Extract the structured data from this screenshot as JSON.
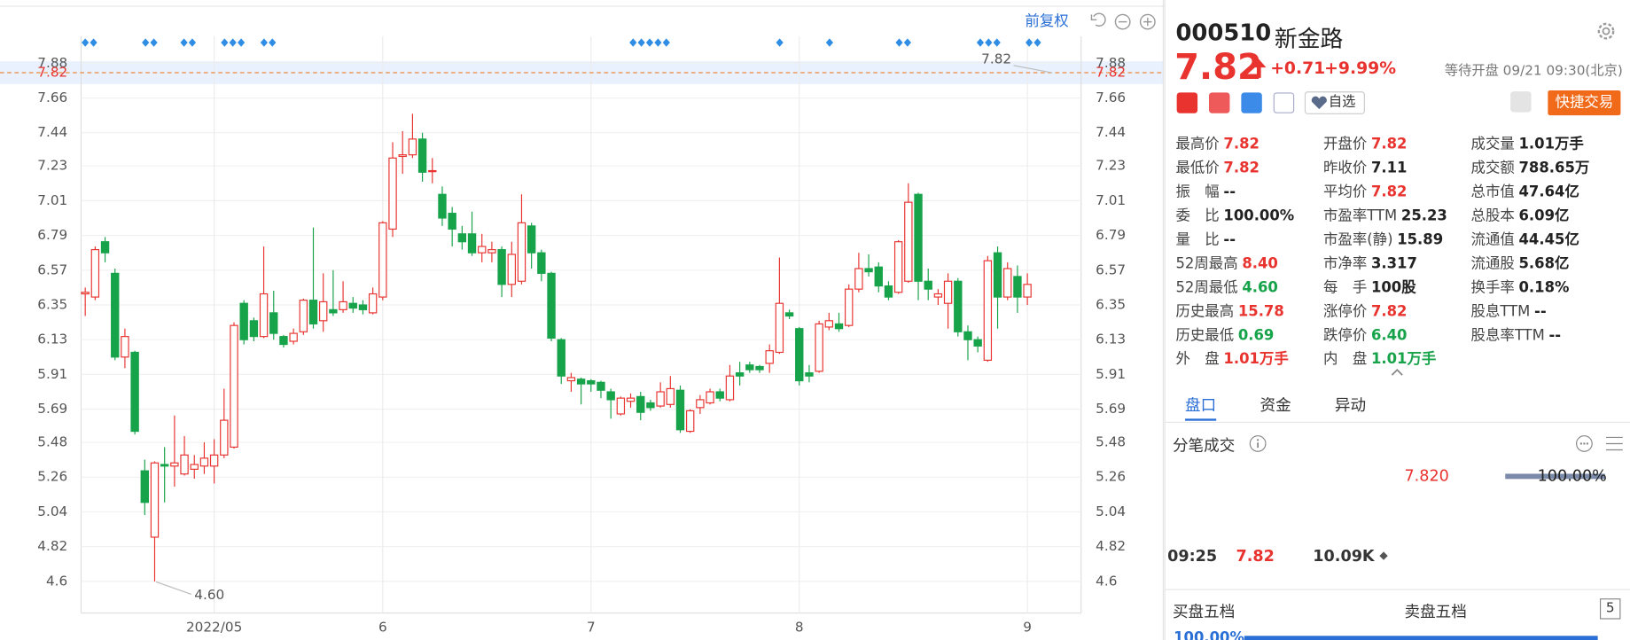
{
  "chart_data": {
    "type": "candlestick",
    "categories": [
      null,
      null,
      null,
      null,
      null,
      null,
      null,
      null,
      null,
      null,
      null,
      null,
      null,
      "2022/05",
      null,
      null,
      null,
      null,
      null,
      null,
      null,
      null,
      null,
      null,
      null,
      null,
      null,
      null,
      null,
      null,
      "6",
      null,
      null,
      null,
      null,
      null,
      null,
      null,
      null,
      null,
      null,
      null,
      null,
      null,
      null,
      null,
      null,
      null,
      null,
      null,
      null,
      "7",
      null,
      null,
      null,
      null,
      null,
      null,
      null,
      null,
      null,
      null,
      null,
      null,
      null,
      null,
      null,
      null,
      null,
      null,
      null,
      null,
      "8",
      null,
      null,
      null,
      null,
      null,
      null,
      null,
      null,
      null,
      null,
      null,
      null,
      null,
      null,
      null,
      null,
      null,
      null,
      null,
      null,
      null,
      null,
      "9"
    ],
    "open": [
      6.42,
      6.4,
      6.75,
      6.55,
      6.02,
      6.05,
      5.3,
      4.88,
      5.34,
      5.33,
      5.28,
      5.31,
      5.33,
      5.33,
      5.4,
      5.45,
      6.36,
      6.25,
      6.15,
      6.3,
      6.15,
      6.12,
      6.18,
      6.38,
      6.25,
      6.32,
      6.32,
      6.36,
      6.35,
      6.3,
      6.4,
      6.83,
      7.29,
      7.3,
      7.4,
      7.2,
      7.05,
      6.93,
      6.8,
      6.8,
      6.68,
      6.68,
      6.7,
      6.48,
      6.5,
      6.85,
      6.68,
      6.55,
      6.13,
      5.87,
      5.88,
      5.87,
      5.86,
      5.8,
      5.66,
      5.74,
      5.77,
      5.73,
      5.71,
      5.72,
      5.81,
      5.55,
      5.7,
      5.73,
      5.8,
      5.75,
      5.92,
      5.97,
      5.96,
      5.98,
      6.05,
      6.3,
      6.2,
      5.92,
      5.93,
      6.21,
      6.23,
      6.22,
      6.45,
      6.58,
      6.59,
      6.47,
      6.43,
      6.5,
      7.05,
      6.5,
      6.4,
      6.36,
      6.5,
      6.18,
      6.13,
      6.0,
      6.68,
      6.4,
      6.53,
      6.4
    ],
    "high": [
      6.46,
      6.72,
      6.78,
      6.58,
      6.2,
      6.06,
      5.37,
      5.36,
      5.45,
      5.65,
      5.52,
      5.4,
      5.48,
      5.5,
      5.82,
      6.24,
      6.38,
      6.27,
      6.72,
      6.44,
      6.16,
      6.2,
      6.39,
      6.84,
      6.55,
      6.57,
      6.5,
      6.4,
      6.38,
      6.46,
      6.88,
      7.38,
      7.45,
      7.56,
      7.44,
      7.28,
      7.1,
      6.97,
      6.85,
      6.94,
      6.8,
      6.75,
      6.72,
      6.75,
      7.05,
      6.87,
      6.7,
      6.56,
      6.14,
      5.92,
      5.89,
      5.88,
      5.87,
      5.82,
      5.77,
      5.79,
      5.8,
      5.75,
      5.86,
      5.9,
      5.84,
      5.69,
      5.78,
      5.82,
      5.82,
      5.97,
      5.99,
      5.99,
      5.97,
      6.1,
      6.65,
      6.32,
      6.21,
      5.97,
      6.25,
      6.3,
      6.3,
      6.48,
      6.68,
      6.67,
      6.62,
      6.5,
      6.76,
      7.12,
      7.06,
      6.58,
      6.45,
      6.55,
      6.52,
      6.22,
      6.15,
      6.66,
      6.72,
      6.62,
      6.6,
      6.55
    ],
    "low": [
      6.28,
      6.38,
      6.62,
      6.0,
      5.95,
      5.53,
      5.02,
      4.6,
      5.1,
      5.2,
      5.27,
      5.25,
      5.28,
      5.22,
      5.38,
      5.44,
      6.1,
      6.12,
      6.14,
      6.13,
      6.08,
      6.1,
      6.16,
      6.2,
      6.18,
      6.28,
      6.3,
      6.3,
      6.29,
      6.29,
      6.38,
      6.78,
      7.18,
      7.28,
      7.13,
      7.12,
      6.85,
      6.72,
      6.7,
      6.66,
      6.62,
      6.62,
      6.4,
      6.4,
      6.48,
      6.58,
      6.5,
      6.12,
      5.85,
      5.8,
      5.72,
      5.8,
      5.76,
      5.63,
      5.65,
      5.7,
      5.62,
      5.68,
      5.7,
      5.7,
      5.54,
      5.54,
      5.66,
      5.72,
      5.74,
      5.74,
      5.84,
      5.92,
      5.92,
      5.92,
      6.04,
      6.26,
      5.84,
      5.86,
      5.92,
      6.19,
      6.18,
      6.21,
      6.43,
      6.53,
      6.43,
      6.38,
      6.42,
      6.49,
      6.38,
      6.38,
      6.35,
      6.2,
      6.15,
      6.0,
      6.05,
      5.99,
      6.2,
      6.38,
      6.3,
      6.35
    ],
    "close": [
      6.43,
      6.7,
      6.68,
      6.02,
      6.15,
      5.55,
      5.1,
      5.35,
      5.33,
      5.35,
      5.4,
      5.34,
      5.38,
      5.4,
      5.62,
      6.22,
      6.13,
      6.15,
      6.42,
      6.17,
      6.1,
      6.17,
      6.38,
      6.23,
      6.37,
      6.3,
      6.37,
      6.33,
      6.32,
      6.42,
      6.87,
      7.28,
      7.3,
      7.4,
      7.19,
      7.2,
      6.9,
      6.83,
      6.75,
      6.68,
      6.72,
      6.7,
      6.48,
      6.67,
      6.87,
      6.68,
      6.55,
      6.14,
      5.9,
      5.89,
      5.85,
      5.85,
      5.81,
      5.75,
      5.76,
      5.76,
      5.67,
      5.7,
      5.8,
      5.82,
      5.56,
      5.68,
      5.75,
      5.8,
      5.76,
      5.9,
      5.9,
      5.94,
      5.94,
      6.06,
      6.36,
      6.28,
      5.87,
      5.9,
      6.23,
      6.25,
      6.2,
      6.45,
      6.58,
      6.56,
      6.47,
      6.4,
      6.75,
      7.0,
      6.5,
      6.45,
      6.42,
      6.5,
      6.18,
      6.13,
      6.09,
      6.63,
      6.4,
      6.58,
      6.4,
      6.48
    ],
    "up_color": "#e8332f",
    "down_color": "#17a34a",
    "ylim": [
      4.4,
      8.05
    ],
    "yticks": [
      4.6,
      4.82,
      5.04,
      5.26,
      5.48,
      5.69,
      5.91,
      6.13,
      6.35,
      6.57,
      6.79,
      7.01,
      7.23,
      7.44,
      7.66,
      7.88
    ],
    "reference_line": 7.82,
    "annotations": [
      "7.82",
      "4.60"
    ],
    "grid": true
  },
  "toolbar": {
    "adjust": "前复权"
  },
  "quote": {
    "code": "000510",
    "name": "新金路",
    "price": "7.82",
    "change": "+0.71",
    "change_pct": "+9.99%",
    "status": "等待开盘 09/21 09:30(北京)",
    "watch_button": "自选",
    "trade_button": "快捷交易",
    "stats": [
      [
        {
          "label": "最高价",
          "value": "7.82",
          "color": "#e8332f"
        },
        {
          "label": "最低价",
          "value": "7.82",
          "color": "#e8332f"
        },
        {
          "label": "振　幅",
          "value": "--"
        },
        {
          "label": "委　比",
          "value": "100.00%"
        },
        {
          "label": "量　比",
          "value": "--"
        },
        {
          "label": "52周最高",
          "value": "8.40",
          "color": "#e8332f"
        },
        {
          "label": "52周最低",
          "value": "4.60",
          "color": "#17a34a"
        },
        {
          "label": "历史最高",
          "value": "15.78",
          "color": "#e8332f"
        },
        {
          "label": "历史最低",
          "value": "0.69",
          "color": "#17a34a"
        },
        {
          "label": "外　盘",
          "value": "1.01万手",
          "color": "#e8332f"
        }
      ],
      [
        {
          "label": "开盘价",
          "value": "7.82",
          "color": "#e8332f"
        },
        {
          "label": "昨收价",
          "value": "7.11"
        },
        {
          "label": "平均价",
          "value": "7.82",
          "color": "#e8332f"
        },
        {
          "label": "市盈率TTM",
          "value": "25.23"
        },
        {
          "label": "市盈率(静)",
          "value": "15.89"
        },
        {
          "label": "市净率",
          "value": "3.317"
        },
        {
          "label": "每　手",
          "value": "100股"
        },
        {
          "label": "涨停价",
          "value": "7.82",
          "color": "#e8332f"
        },
        {
          "label": "跌停价",
          "value": "6.40",
          "color": "#17a34a"
        },
        {
          "label": "内　盘",
          "value": "1.01万手",
          "color": "#17a34a"
        }
      ],
      [
        {
          "label": "成交量",
          "value": "1.01万手"
        },
        {
          "label": "成交额",
          "value": "788.65万"
        },
        {
          "label": "总市值",
          "value": "47.64亿"
        },
        {
          "label": "总股本",
          "value": "6.09亿"
        },
        {
          "label": "流通值",
          "value": "44.45亿"
        },
        {
          "label": "流通股",
          "value": "5.68亿"
        },
        {
          "label": "换手率",
          "value": "0.18%"
        },
        {
          "label": "股息TTM",
          "value": "--"
        },
        {
          "label": "股息率TTM",
          "value": "--"
        }
      ]
    ],
    "tabs": [
      "盘口",
      "资金",
      "异动"
    ],
    "ticks_title": "分笔成交",
    "tick_price": "7.820",
    "tick_ratio": "100.00%",
    "trade": {
      "time": "09:25",
      "price": "7.82",
      "volume": "10.09K"
    },
    "bid_title": "买盘五档",
    "ask_title": "卖盘五档",
    "levels": "5",
    "bid_ratio": "100.00%"
  }
}
